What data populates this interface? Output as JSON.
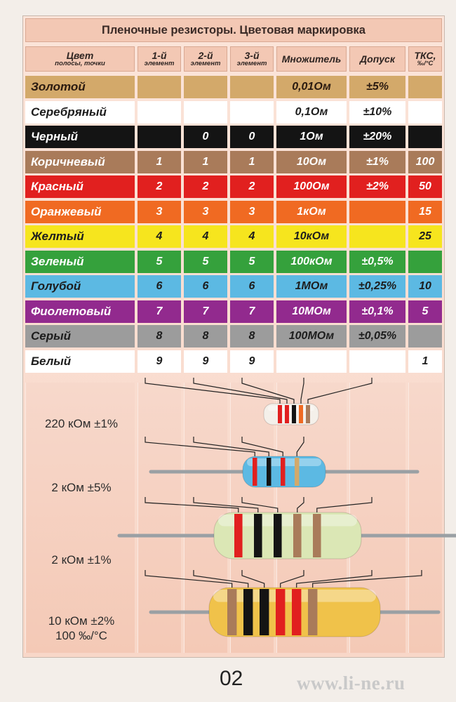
{
  "title": "Пленочные резисторы. Цветовая маркировка",
  "headers": [
    {
      "big": "Цвет",
      "small": "полосы, точки"
    },
    {
      "big": "1-й",
      "small": "элемент"
    },
    {
      "big": "2-й",
      "small": "элемент"
    },
    {
      "big": "3-й",
      "small": "элемент"
    },
    {
      "big": "Множитель",
      "small": ""
    },
    {
      "big": "Допуск",
      "small": ""
    },
    {
      "big": "ТКС,",
      "small": "‰/°С"
    }
  ],
  "rows": [
    {
      "name": "Золотой",
      "color": "#d3a96a",
      "textColor": "#2a1a10",
      "d1": "",
      "d2": "",
      "d3": "",
      "mult": "0,01Ом",
      "tol": "±5%",
      "tks": ""
    },
    {
      "name": "Серебряный",
      "color": "#ffffff",
      "textColor": "#1d1d1d",
      "d1": "",
      "d2": "",
      "d3": "",
      "mult": "0,1Ом",
      "tol": "±10%",
      "tks": ""
    },
    {
      "name": "Черный",
      "color": "#141414",
      "textColor": "#ffffff",
      "d1": "",
      "d2": "0",
      "d3": "0",
      "mult": "1Ом",
      "tol": "±20%",
      "tks": ""
    },
    {
      "name": "Коричневый",
      "color": "#a97b5a",
      "textColor": "#ffffff",
      "d1": "1",
      "d2": "1",
      "d3": "1",
      "mult": "10Ом",
      "tol": "±1%",
      "tks": "100"
    },
    {
      "name": "Красный",
      "color": "#e1201f",
      "textColor": "#ffffff",
      "d1": "2",
      "d2": "2",
      "d3": "2",
      "mult": "100Ом",
      "tol": "±2%",
      "tks": "50"
    },
    {
      "name": "Оранжевый",
      "color": "#f06a22",
      "textColor": "#ffffff",
      "d1": "3",
      "d2": "3",
      "d3": "3",
      "mult": "1кОм",
      "tol": "",
      "tks": "15"
    },
    {
      "name": "Желтый",
      "color": "#f6e51e",
      "textColor": "#1d1d1d",
      "d1": "4",
      "d2": "4",
      "d3": "4",
      "mult": "10кОм",
      "tol": "",
      "tks": "25"
    },
    {
      "name": "Зеленый",
      "color": "#35a13c",
      "textColor": "#ffffff",
      "d1": "5",
      "d2": "5",
      "d3": "5",
      "mult": "100кОм",
      "tol": "±0,5%",
      "tks": ""
    },
    {
      "name": "Голубой",
      "color": "#5cb9e3",
      "textColor": "#1d1d1d",
      "d1": "6",
      "d2": "6",
      "d3": "6",
      "mult": "1МОм",
      "tol": "±0,25%",
      "tks": "10"
    },
    {
      "name": "Фиолетовый",
      "color": "#922a8e",
      "textColor": "#ffffff",
      "d1": "7",
      "d2": "7",
      "d3": "7",
      "mult": "10МОм",
      "tol": "±0,1%",
      "tks": "5"
    },
    {
      "name": "Серый",
      "color": "#9c9c9c",
      "textColor": "#1d1d1d",
      "d1": "8",
      "d2": "8",
      "d3": "8",
      "mult": "100МОм",
      "tol": "±0,05%",
      "tks": ""
    },
    {
      "name": "Белый",
      "color": "#ffffff",
      "textColor": "#1d1d1d",
      "d1": "9",
      "d2": "9",
      "d3": "9",
      "mult": "",
      "tol": "",
      "tks": "1"
    }
  ],
  "examples": [
    {
      "label": "220 кОм ±1%",
      "label2": "",
      "size": "small",
      "bands": [
        "#e1201f",
        "#e1201f",
        "#141414",
        "#f06a22",
        "#a97b5a"
      ],
      "body": "#f4f0ea"
    },
    {
      "label": "2 кОм ±5%",
      "label2": "",
      "size": "medium",
      "bands": [
        "#e1201f",
        "#141414",
        "#e1201f",
        "#d3a96a"
      ],
      "body": "#5cb9e3"
    },
    {
      "label": "2 кОм ±1%",
      "label2": "",
      "size": "large",
      "bands": [
        "#e1201f",
        "#141414",
        "#141414",
        "#a97b5a",
        "#a97b5a"
      ],
      "body": "#dbe7b5"
    },
    {
      "label": "10 кОм ±2%",
      "label2": "100 ‰/°С",
      "size": "xlarge",
      "bands": [
        "#a97b5a",
        "#141414",
        "#141414",
        "#e1201f",
        "#e1201f",
        "#a97b5a"
      ],
      "body": "#f0c24a"
    }
  ],
  "page_number": "02",
  "watermark": "www.li-ne.ru"
}
